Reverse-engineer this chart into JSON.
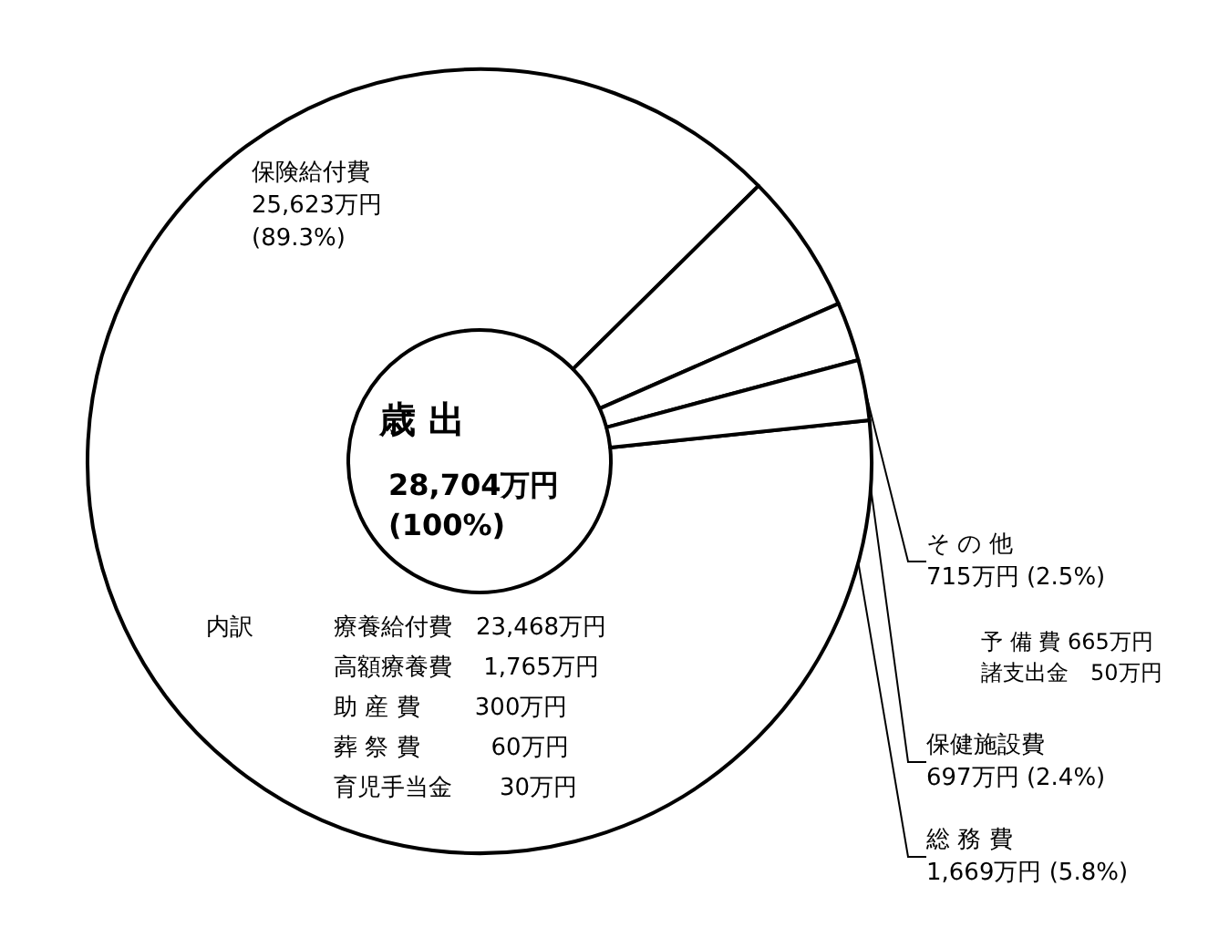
{
  "chart_data": {
    "type": "donut",
    "title": "歳 出",
    "categories": [
      "保険給付費",
      "総 務 費",
      "保健施設費",
      "そ の 他"
    ],
    "values": [
      25623,
      1669,
      697,
      715
    ],
    "colors": [
      "#ffffff",
      "#ffffff",
      "#ffffff",
      "#ffffff"
    ],
    "value_labels": [
      "25,623万円\n(89.3%)",
      "1,669万円 (5.8%)",
      "697万円 (2.4%)",
      "715万円 (2.5%)"
    ],
    "annotations": [
      "28,704万円",
      "(100%)",
      "内訳",
      "療養給付費　23,468万円",
      "高額療養費　 1,765万円",
      "助 産 費　　 300万円",
      "葬 祭 費　　　60万円",
      "育児手当金　　30万円",
      "予 備 費 665万円",
      "諸支出金　50万円"
    ],
    "legend": false
  }
}
